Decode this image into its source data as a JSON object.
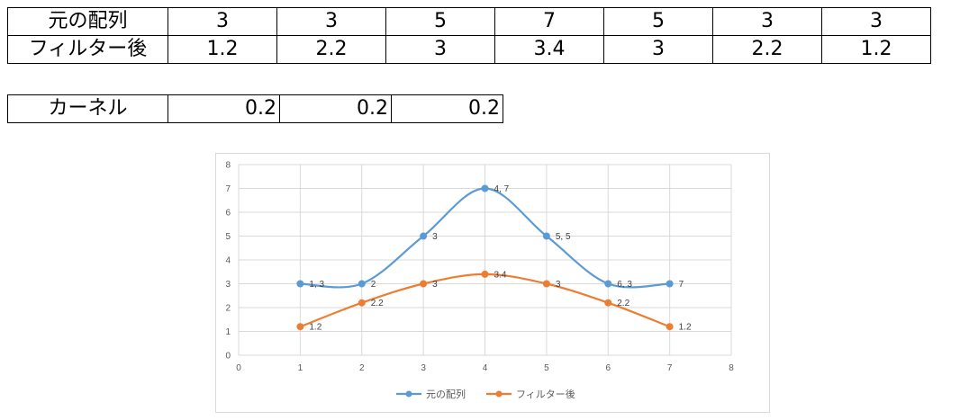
{
  "table1": {
    "rows": [
      {
        "label": "元の配列",
        "values": [
          "3",
          "3",
          "5",
          "7",
          "5",
          "3",
          "3"
        ]
      },
      {
        "label": "フィルター後",
        "values": [
          "1.2",
          "2.2",
          "3",
          "3.4",
          "3",
          "2.2",
          "1.2"
        ]
      }
    ]
  },
  "table2": {
    "label": "カーネル",
    "values": [
      "0.2",
      "0.2",
      "0.2"
    ]
  },
  "colors": {
    "series1": "#5b9bd5",
    "series2": "#ed7d31",
    "grid": "#d9d9d9",
    "axis_text": "#595959"
  },
  "chart_data": {
    "type": "scatter",
    "smooth": true,
    "xlim": [
      0,
      8
    ],
    "ylim": [
      0,
      8
    ],
    "xticks": [
      0,
      1,
      2,
      3,
      4,
      5,
      6,
      7,
      8
    ],
    "yticks": [
      0,
      1,
      2,
      3,
      4,
      5,
      6,
      7,
      8
    ],
    "grid": true,
    "legend": "bottom",
    "series": [
      {
        "name": "元の配列",
        "color": "#5b9bd5",
        "x": [
          1,
          2,
          3,
          4,
          5,
          6,
          7
        ],
        "y": [
          3,
          3,
          5,
          7,
          5,
          3,
          3
        ],
        "labels": [
          "1, 3",
          "2",
          "3",
          "4, 7",
          "5, 5",
          "6, 3",
          "7"
        ]
      },
      {
        "name": "フィルター後",
        "color": "#ed7d31",
        "x": [
          1,
          2,
          3,
          4,
          5,
          6,
          7
        ],
        "y": [
          1.2,
          2.2,
          3,
          3.4,
          3,
          2.2,
          1.2
        ],
        "labels": [
          "1.2",
          "2.2",
          "3",
          "3.4",
          "3",
          "2.2",
          "1.2"
        ]
      }
    ]
  }
}
